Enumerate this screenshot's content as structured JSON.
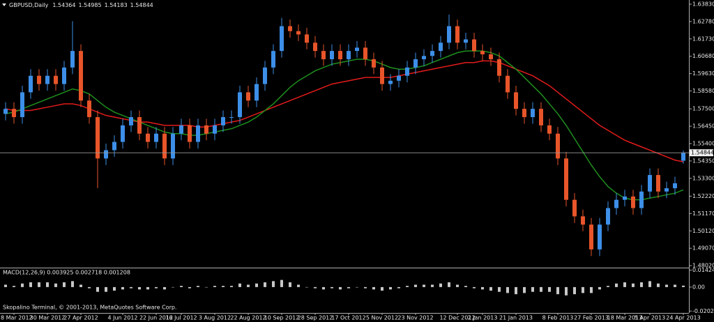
{
  "chart_data": [
    {
      "type": "candlestick",
      "title": "GBPUSD,Daily",
      "footer": "Skopalino Terminal, © 2001-2013, MetaQuotes Software Corp.",
      "up_color": "#3d8fe8",
      "down_color": "#e8552a",
      "background": "#000000",
      "categories": [
        null,
        "8 Mar 2012",
        null,
        null,
        null,
        "30 Mar 2012",
        null,
        null,
        null,
        "27 Apr 2012",
        null,
        null,
        null,
        null,
        "4 Jun 2012",
        null,
        null,
        null,
        "22 Jun 2012",
        null,
        null,
        "16 Jul 2012",
        null,
        null,
        null,
        "3 Aug 2012",
        null,
        null,
        null,
        "22 Aug 2012",
        null,
        null,
        null,
        "10 Sep 2012",
        null,
        null,
        null,
        "28 Sep 2012",
        null,
        null,
        null,
        "17 Oct 2012",
        null,
        null,
        null,
        "5 Nov 2012",
        null,
        null,
        null,
        "23 Nov 2012",
        null,
        null,
        null,
        null,
        "12 Dec 2012",
        null,
        null,
        "2 Jan 2013",
        null,
        null,
        null,
        "21 Jan 2013",
        null,
        null,
        null,
        null,
        "8 Feb 2013",
        null,
        null,
        null,
        "27 Feb 2013",
        null,
        null,
        null,
        "18 Mar 2013",
        null,
        null,
        "5 Apr 2013",
        null,
        null,
        null,
        "24 Apr 2013"
      ],
      "open": [
        1.572,
        1.575,
        1.57,
        1.585,
        1.595,
        1.59,
        1.595,
        1.59,
        1.6,
        1.61,
        1.58,
        1.57,
        1.545,
        1.55,
        1.555,
        1.565,
        1.57,
        1.56,
        1.555,
        1.56,
        1.545,
        1.56,
        1.565,
        1.555,
        1.565,
        1.56,
        1.565,
        1.57,
        1.57,
        1.585,
        1.58,
        1.59,
        1.6,
        1.61,
        1.625,
        1.622,
        1.62,
        1.615,
        1.61,
        1.605,
        1.61,
        1.605,
        1.61,
        1.612,
        1.605,
        1.6,
        1.59,
        1.592,
        1.595,
        1.6,
        1.605,
        1.607,
        1.61,
        1.615,
        1.625,
        1.615,
        1.617,
        1.61,
        1.608,
        1.605,
        1.595,
        1.585,
        1.575,
        1.57,
        1.575,
        1.565,
        1.56,
        1.545,
        1.52,
        1.51,
        1.505,
        1.49,
        1.505,
        1.515,
        1.52,
        1.522,
        1.515,
        1.525,
        1.535,
        1.525,
        1.527,
        1.54364
      ],
      "high": [
        1.579,
        1.579,
        1.589,
        1.599,
        1.599,
        1.599,
        1.599,
        1.604,
        1.628,
        1.614,
        1.584,
        1.574,
        1.554,
        1.559,
        1.569,
        1.574,
        1.574,
        1.564,
        1.564,
        1.564,
        1.564,
        1.569,
        1.569,
        1.569,
        1.569,
        1.569,
        1.574,
        1.574,
        1.589,
        1.589,
        1.594,
        1.604,
        1.614,
        1.63,
        1.629,
        1.626,
        1.624,
        1.619,
        1.614,
        1.614,
        1.614,
        1.614,
        1.616,
        1.616,
        1.609,
        1.604,
        1.596,
        1.599,
        1.604,
        1.609,
        1.611,
        1.614,
        1.619,
        1.632,
        1.629,
        1.621,
        1.621,
        1.614,
        1.612,
        1.609,
        1.599,
        1.589,
        1.579,
        1.579,
        1.579,
        1.569,
        1.564,
        1.549,
        1.524,
        1.514,
        1.509,
        1.509,
        1.519,
        1.524,
        1.526,
        1.526,
        1.529,
        1.539,
        1.539,
        1.531,
        1.534,
        1.54985
      ],
      "low": [
        1.568,
        1.566,
        1.566,
        1.581,
        1.586,
        1.586,
        1.586,
        1.586,
        1.596,
        1.576,
        1.566,
        1.527,
        1.541,
        1.546,
        1.551,
        1.561,
        1.556,
        1.551,
        1.551,
        1.541,
        1.541,
        1.556,
        1.551,
        1.551,
        1.556,
        1.556,
        1.561,
        1.566,
        1.566,
        1.576,
        1.576,
        1.586,
        1.596,
        1.606,
        1.618,
        1.616,
        1.611,
        1.606,
        1.601,
        1.601,
        1.601,
        1.601,
        1.606,
        1.601,
        1.596,
        1.586,
        1.586,
        1.588,
        1.591,
        1.596,
        1.601,
        1.603,
        1.606,
        1.611,
        1.611,
        1.611,
        1.606,
        1.604,
        1.601,
        1.591,
        1.581,
        1.571,
        1.566,
        1.566,
        1.561,
        1.556,
        1.541,
        1.516,
        1.506,
        1.501,
        1.486,
        1.486,
        1.501,
        1.511,
        1.516,
        1.511,
        1.511,
        1.521,
        1.521,
        1.521,
        1.523,
        1.54183
      ],
      "close": [
        1.575,
        1.57,
        1.585,
        1.595,
        1.59,
        1.595,
        1.59,
        1.6,
        1.61,
        1.58,
        1.57,
        1.545,
        1.55,
        1.555,
        1.565,
        1.57,
        1.56,
        1.555,
        1.56,
        1.545,
        1.56,
        1.565,
        1.555,
        1.565,
        1.56,
        1.565,
        1.57,
        1.57,
        1.585,
        1.58,
        1.59,
        1.6,
        1.61,
        1.625,
        1.622,
        1.62,
        1.615,
        1.61,
        1.605,
        1.61,
        1.605,
        1.61,
        1.612,
        1.605,
        1.6,
        1.59,
        1.592,
        1.595,
        1.6,
        1.605,
        1.607,
        1.61,
        1.615,
        1.625,
        1.615,
        1.617,
        1.61,
        1.608,
        1.605,
        1.595,
        1.585,
        1.575,
        1.57,
        1.575,
        1.565,
        1.56,
        1.545,
        1.52,
        1.51,
        1.505,
        1.49,
        1.505,
        1.515,
        1.52,
        1.522,
        1.515,
        1.525,
        1.535,
        1.525,
        1.527,
        1.53,
        1.54844
      ],
      "series": [
        {
          "color": "#e41b1b",
          "values": [
            1.575,
            1.574,
            1.574,
            1.574,
            1.575,
            1.576,
            1.577,
            1.578,
            1.578,
            1.577,
            1.575,
            1.573,
            1.571,
            1.57,
            1.569,
            1.568,
            1.567,
            1.567,
            1.566,
            1.565,
            1.565,
            1.565,
            1.565,
            1.564,
            1.564,
            1.565,
            1.566,
            1.567,
            1.568,
            1.57,
            1.572,
            1.574,
            1.576,
            1.578,
            1.58,
            1.582,
            1.584,
            1.586,
            1.588,
            1.59,
            1.591,
            1.592,
            1.593,
            1.594,
            1.594,
            1.594,
            1.594,
            1.595,
            1.596,
            1.597,
            1.598,
            1.599,
            1.6,
            1.601,
            1.602,
            1.603,
            1.603,
            1.604,
            1.604,
            1.603,
            1.601,
            1.599,
            1.597,
            1.595,
            1.592,
            1.589,
            1.585,
            1.581,
            1.577,
            1.573,
            1.569,
            1.565,
            1.562,
            1.559,
            1.556,
            1.554,
            1.552,
            1.55,
            1.548,
            1.546,
            1.544,
            1.543
          ]
        },
        {
          "color": "#1f8f1f",
          "values": [
            1.572,
            1.573,
            1.575,
            1.577,
            1.579,
            1.581,
            1.583,
            1.585,
            1.587,
            1.586,
            1.584,
            1.58,
            1.576,
            1.573,
            1.571,
            1.569,
            1.567,
            1.565,
            1.563,
            1.561,
            1.56,
            1.56,
            1.559,
            1.559,
            1.56,
            1.561,
            1.562,
            1.563,
            1.565,
            1.567,
            1.57,
            1.574,
            1.578,
            1.583,
            1.588,
            1.592,
            1.595,
            1.598,
            1.6,
            1.602,
            1.603,
            1.604,
            1.605,
            1.605,
            1.604,
            1.602,
            1.6,
            1.599,
            1.599,
            1.6,
            1.601,
            1.603,
            1.605,
            1.607,
            1.609,
            1.61,
            1.61,
            1.61,
            1.609,
            1.607,
            1.603,
            1.599,
            1.594,
            1.589,
            1.584,
            1.578,
            1.572,
            1.565,
            1.557,
            1.549,
            1.541,
            1.534,
            1.528,
            1.524,
            1.521,
            1.52,
            1.52,
            1.521,
            1.522,
            1.523,
            1.524,
            1.526
          ]
        }
      ],
      "ylim": [
        1.4794,
        1.6404
      ],
      "yticks": [
        {
          "value": 1.6383,
          "label": "1.63830"
        },
        {
          "value": 1.6278,
          "label": "1.62780"
        },
        {
          "value": 1.6173,
          "label": "1.61730"
        },
        {
          "value": 1.6068,
          "label": "1.60680"
        },
        {
          "value": 1.5963,
          "label": "1.59630"
        },
        {
          "value": 1.5858,
          "label": "1.58580"
        },
        {
          "value": 1.575,
          "label": "1.57500"
        },
        {
          "value": 1.5645,
          "label": "1.56450"
        },
        {
          "value": 1.554,
          "label": "1.55400"
        },
        {
          "value": 1.5435,
          "label": "1.54350"
        },
        {
          "value": 1.533,
          "label": "1.53300"
        },
        {
          "value": 1.5222,
          "label": "1.52220"
        },
        {
          "value": 1.5117,
          "label": "1.51170"
        },
        {
          "value": 1.5012,
          "label": "1.50120"
        },
        {
          "value": 1.4907,
          "label": "1.49070"
        },
        {
          "value": 1.4802,
          "label": "1.48020"
        }
      ],
      "grid": false
    },
    {
      "type": "bar",
      "title": "MACD(12,26,9) 0.003925 0.002718 0.001208",
      "color": "#c8c8c8",
      "values": [
        0.002,
        0.001,
        0.003,
        0.004,
        0.004,
        0.004,
        0.003,
        0.004,
        0.005,
        0.002,
        -0.001,
        -0.004,
        -0.004,
        -0.003,
        -0.002,
        -0.001,
        -0.002,
        -0.002,
        -0.001,
        -0.002,
        0.0,
        0.001,
        -0.001,
        0.001,
        0.0,
        0.001,
        0.001,
        0.001,
        0.003,
        0.002,
        0.003,
        0.004,
        0.005,
        0.006,
        0.004,
        0.002,
        0.0,
        -0.001,
        -0.002,
        -0.001,
        -0.002,
        -0.001,
        0.0,
        -0.001,
        -0.002,
        -0.003,
        -0.002,
        -0.001,
        0.001,
        0.002,
        0.002,
        0.002,
        0.003,
        0.004,
        0.002,
        0.001,
        -0.001,
        -0.002,
        -0.003,
        -0.004,
        -0.005,
        -0.006,
        -0.005,
        -0.004,
        -0.004,
        -0.004,
        -0.006,
        -0.007,
        -0.006,
        -0.005,
        -0.005,
        -0.002,
        0.001,
        0.003,
        0.004,
        0.003,
        0.004,
        0.005,
        0.003,
        0.002,
        0.002,
        0.001208
      ],
      "ylim": [
        -0.0212,
        0.0152
      ],
      "yticks": [
        0.014247,
        {
          "value": 0,
          "label": "0.00"
        },
        -0.020201
      ],
      "grid": false
    }
  ]
}
